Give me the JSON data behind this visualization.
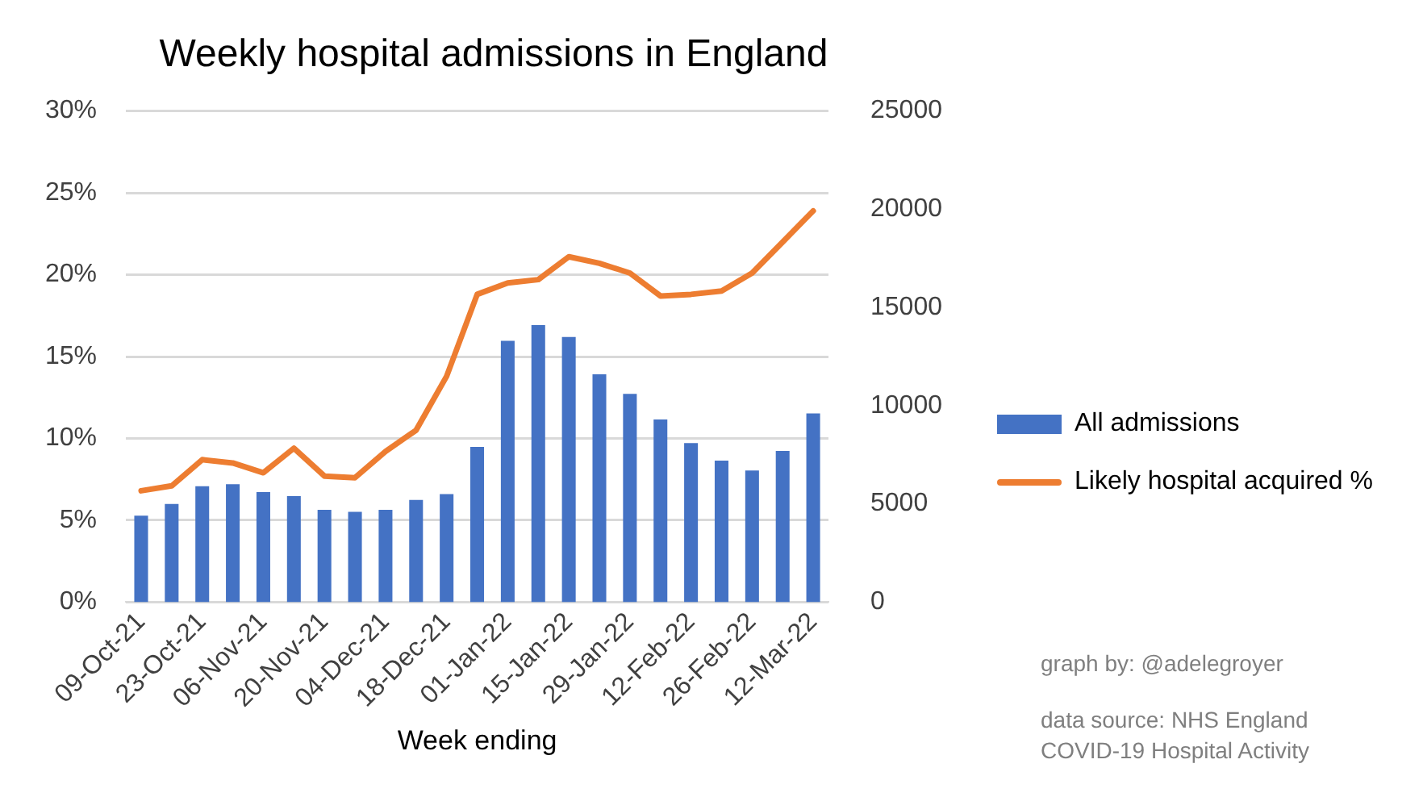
{
  "chart_data": {
    "type": "bar",
    "title": "Weekly hospital admissions in England",
    "xlabel": "Week ending",
    "categories": [
      "09-Oct-21",
      null,
      "23-Oct-21",
      null,
      "06-Nov-21",
      null,
      "20-Nov-21",
      null,
      "04-Dec-21",
      null,
      "18-Dec-21",
      null,
      "01-Jan-22",
      null,
      "15-Jan-22",
      null,
      "29-Jan-22",
      null,
      "12-Feb-22",
      null,
      "26-Feb-22",
      null,
      "12-Mar-22"
    ],
    "series": [
      {
        "name": "All admissions",
        "axis": "y2",
        "color": "#4472c4",
        "values": [
          4400,
          5000,
          5900,
          6000,
          5600,
          5400,
          4700,
          4600,
          4700,
          5200,
          5500,
          7900,
          13300,
          14100,
          13500,
          11600,
          10600,
          9300,
          8100,
          7200,
          6700,
          7700,
          9600
        ]
      },
      {
        "name": "Likely hospital acquired %",
        "type": "line",
        "color": "#ed7d31",
        "values": [
          6.8,
          7.1,
          8.7,
          8.5,
          7.9,
          9.4,
          7.7,
          7.6,
          9.2,
          10.5,
          13.8,
          18.8,
          19.5,
          19.7,
          21.1,
          20.7,
          20.1,
          18.7,
          18.8,
          19.0,
          20.1,
          22.0,
          23.9
        ]
      }
    ],
    "ylim": [
      0,
      30
    ],
    "yticks": [
      {
        "value": 0,
        "label": "0%"
      },
      {
        "value": 5,
        "label": "5%"
      },
      {
        "value": 10,
        "label": "10%"
      },
      {
        "value": 15,
        "label": "15%"
      },
      {
        "value": 20,
        "label": "20%"
      },
      {
        "value": 25,
        "label": "25%"
      },
      {
        "value": 30,
        "label": "30%"
      }
    ],
    "y2lim": [
      0,
      25000
    ],
    "y2ticks": [
      0,
      5000,
      10000,
      15000,
      20000,
      25000
    ],
    "grid": "y",
    "legend": "right",
    "marker": "none",
    "annotations": [
      "graph by: @adelegroyer",
      "data source: NHS England",
      "COVID-19 Hospital Activity"
    ]
  }
}
